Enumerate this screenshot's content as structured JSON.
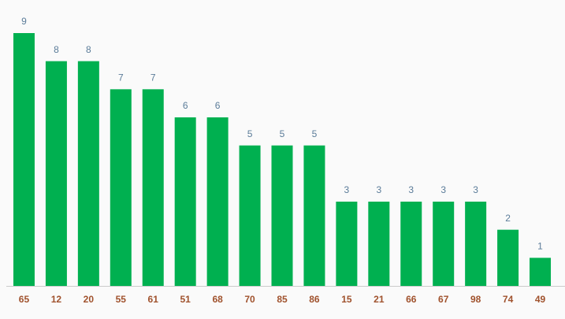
{
  "chart_data": {
    "type": "bar",
    "categories": [
      "65",
      "12",
      "20",
      "55",
      "61",
      "51",
      "68",
      "70",
      "85",
      "86",
      "15",
      "21",
      "66",
      "67",
      "98",
      "74",
      "49"
    ],
    "values": [
      9,
      8,
      8,
      7,
      7,
      6,
      6,
      5,
      5,
      5,
      3,
      3,
      3,
      3,
      3,
      2,
      1
    ],
    "color": "#00b050"
  }
}
